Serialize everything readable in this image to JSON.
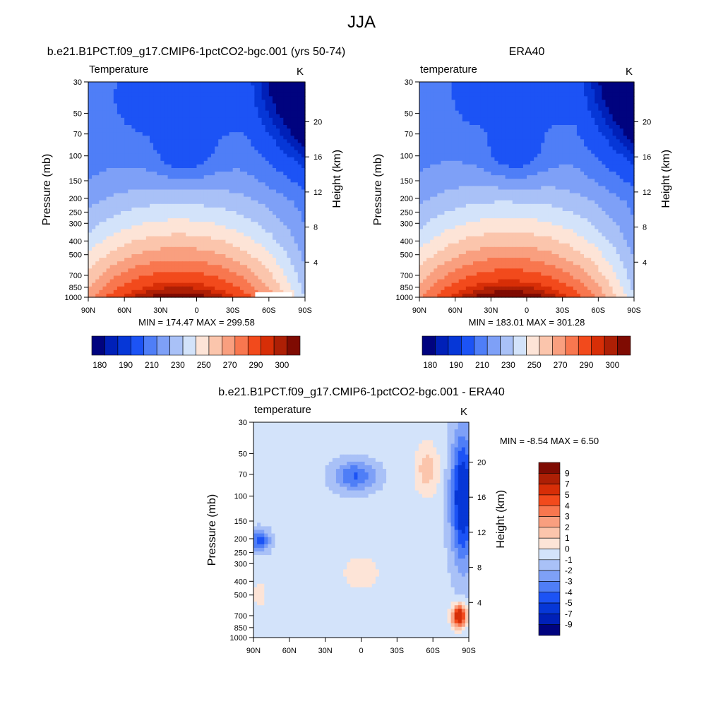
{
  "figure": {
    "title": "JJA"
  },
  "colors": {
    "abs_palette": [
      "#00037f",
      "#0020b8",
      "#0637d7",
      "#1c53f5",
      "#4f7ef7",
      "#7ea0f7",
      "#a9c1f7",
      "#d3e3fa",
      "#fde4d7",
      "#fbc5ac",
      "#f99f7f",
      "#f8774f",
      "#f24a1c",
      "#d72e07",
      "#ad1f05",
      "#7f0b02"
    ],
    "diff_palette": [
      "#00037f",
      "#0020b8",
      "#0637d7",
      "#1c53f5",
      "#4f7ef7",
      "#7ea0f7",
      "#a9c1f7",
      "#d3e3fa",
      "#fde4d7",
      "#fbc5ac",
      "#f99f7f",
      "#f8774f",
      "#f24a1c",
      "#d72e07",
      "#ad1f05",
      "#7f0b02"
    ]
  },
  "panels": [
    {
      "id": "model",
      "title": "b.e21.B1PCT.f09_g17.CMIP6-1pctCO2-bgc.001 (yrs 50-74)",
      "var_label": "Temperature",
      "units": "K",
      "y_left_label": "Pressure (mb)",
      "y_right_label": "Height (km)",
      "min_max_text": "MIN = 174.47   MAX = 299.58"
    },
    {
      "id": "obs",
      "title": "ERA40",
      "var_label": "temperature",
      "units": "K",
      "y_left_label": "Pressure (mb)",
      "y_right_label": "Height (km)",
      "min_max_text": "MIN = 183.01   MAX = 301.28"
    },
    {
      "id": "diff",
      "title": "b.e21.B1PCT.f09_g17.CMIP6-1pctCO2-bgc.001 - ERA40",
      "var_label": "temperature",
      "units": "K",
      "y_left_label": "Pressure (mb)",
      "y_right_label": "Height (km)",
      "min_max_text": "MIN =  -8.54  MAX =   6.50"
    }
  ],
  "axes": {
    "pressure_ticks": [
      "30",
      "50",
      "70",
      "100",
      "150",
      "200",
      "250",
      "300",
      "400",
      "500",
      "700",
      "850",
      "1000"
    ],
    "height_ticks": [
      "4",
      "8",
      "12",
      "16",
      "20"
    ],
    "lat_ticks": [
      "90N",
      "60N",
      "30N",
      "0",
      "30S",
      "60S",
      "90S"
    ]
  },
  "abs_colorbar_labels": [
    "180",
    "190",
    "210",
    "230",
    "250",
    "270",
    "290",
    "300"
  ],
  "diff_colorbar_labels": [
    "9",
    "7",
    "5",
    "4",
    "3",
    "2",
    "1",
    "0",
    "-1",
    "-2",
    "-3",
    "-4",
    "-5",
    "-7",
    "-9"
  ],
  "chart_data": [
    {
      "type": "heatmap",
      "title": "b.e21.B1PCT.f09_g17.CMIP6-1pctCO2-bgc.001 (yrs 50-74)",
      "xlabel": "",
      "ylabel": "Pressure (mb)",
      "y2label": "Height (km)",
      "x": [
        "90N",
        "60N",
        "30N",
        "0",
        "30S",
        "60S",
        "90S"
      ],
      "y": [
        30,
        50,
        70,
        100,
        150,
        200,
        250,
        300,
        400,
        500,
        700,
        850,
        1000
      ],
      "levels": [
        180,
        185,
        190,
        200,
        210,
        220,
        230,
        240,
        250,
        260,
        270,
        280,
        290,
        295,
        300
      ],
      "min": 174.47,
      "max": 299.58,
      "units": "K"
    },
    {
      "type": "heatmap",
      "title": "ERA40",
      "xlabel": "",
      "ylabel": "Pressure (mb)",
      "y2label": "Height (km)",
      "x": [
        "90N",
        "60N",
        "30N",
        "0",
        "30S",
        "60S",
        "90S"
      ],
      "y": [
        30,
        50,
        70,
        100,
        150,
        200,
        250,
        300,
        400,
        500,
        700,
        850,
        1000
      ],
      "levels": [
        180,
        185,
        190,
        200,
        210,
        220,
        230,
        240,
        250,
        260,
        270,
        280,
        290,
        295,
        300
      ],
      "min": 183.01,
      "max": 301.28,
      "units": "K"
    },
    {
      "type": "heatmap",
      "title": "b.e21.B1PCT.f09_g17.CMIP6-1pctCO2-bgc.001 - ERA40",
      "xlabel": "",
      "ylabel": "Pressure (mb)",
      "y2label": "Height (km)",
      "x": [
        "90N",
        "60N",
        "30N",
        "0",
        "30S",
        "60S",
        "90S"
      ],
      "y": [
        30,
        50,
        70,
        100,
        150,
        200,
        250,
        300,
        400,
        500,
        700,
        850,
        1000
      ],
      "levels": [
        -9,
        -7,
        -5,
        -4,
        -3,
        -2,
        -1,
        0,
        1,
        2,
        3,
        4,
        5,
        7,
        9
      ],
      "min": -8.54,
      "max": 6.5,
      "units": "K"
    }
  ]
}
